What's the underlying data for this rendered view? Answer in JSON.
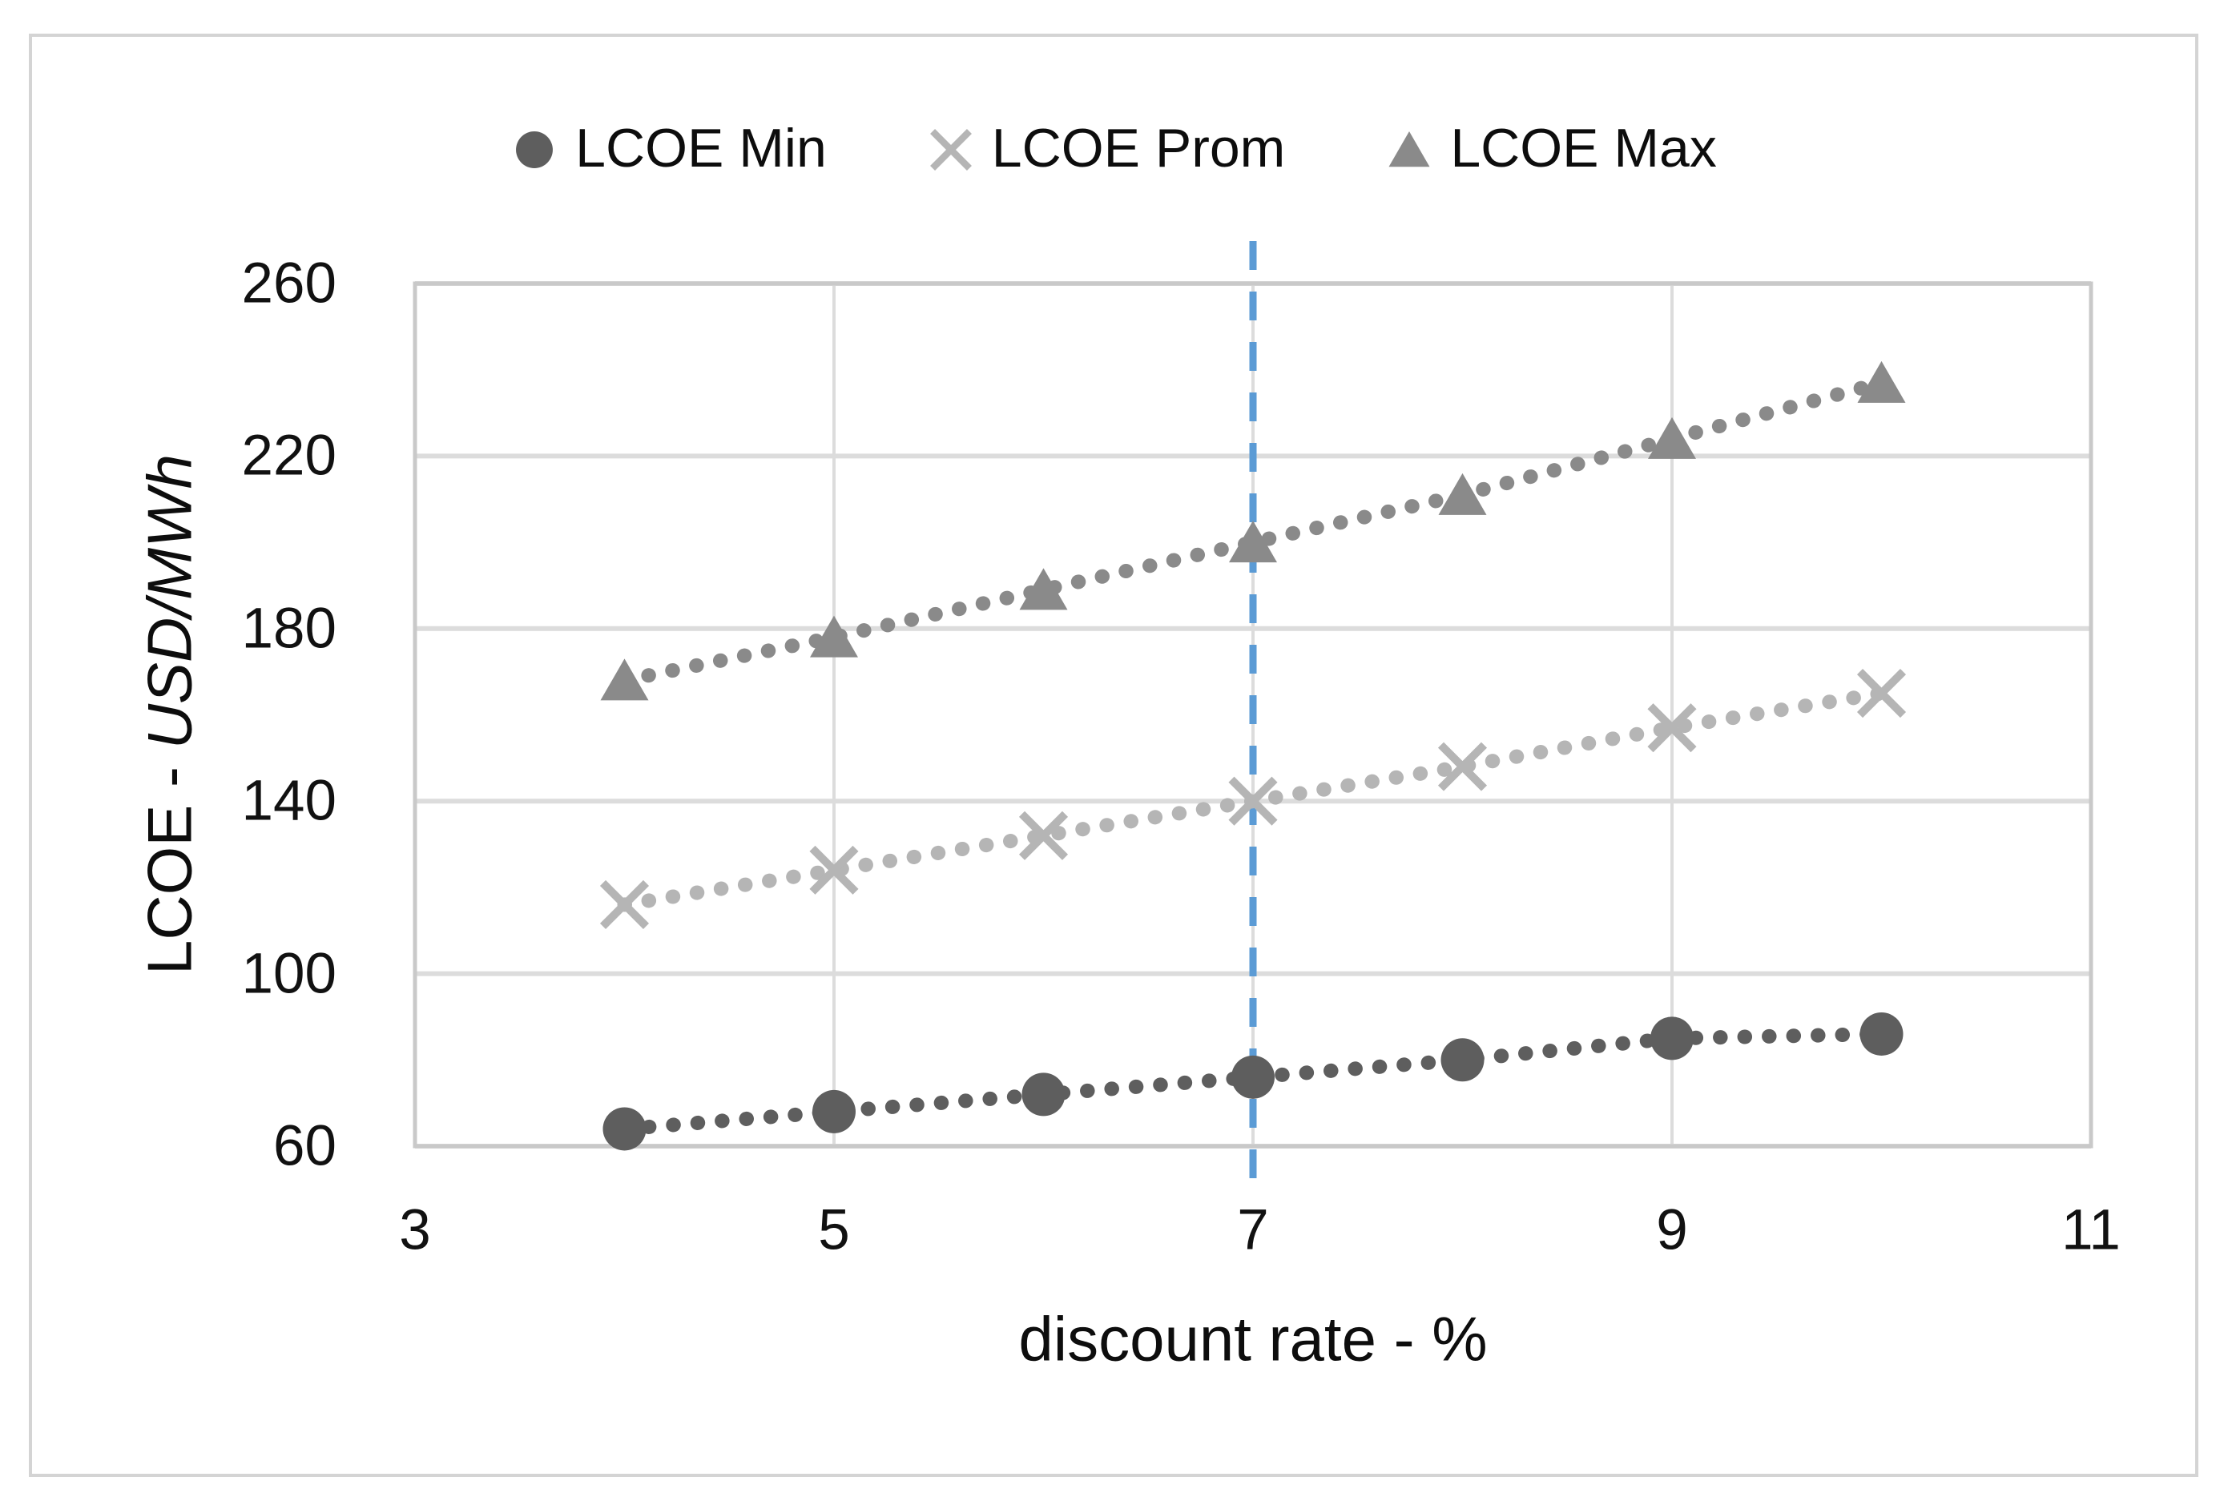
{
  "chart_data": {
    "type": "scatter",
    "x": [
      4,
      5,
      6,
      7,
      8,
      9,
      10
    ],
    "series": [
      {
        "name": "LCOE Min",
        "marker": "circle",
        "color": "#5e5e5e",
        "values": [
          64,
          68,
          72,
          76,
          80,
          85,
          86
        ]
      },
      {
        "name": "LCOE Prom",
        "marker": "x",
        "color": "#b5b5b5",
        "values": [
          116,
          124,
          132,
          140,
          148,
          157,
          165
        ]
      },
      {
        "name": "LCOE Max",
        "marker": "triangle",
        "color": "#8a8a8a",
        "values": [
          168,
          178,
          189,
          200,
          211,
          224,
          237
        ]
      }
    ],
    "xlabel": "discount rate - %",
    "ylabel_prefix": "LCOE - ",
    "ylabel_unit": "USD/MWh",
    "xlim": [
      3,
      11
    ],
    "ylim": [
      60,
      260
    ],
    "xticks": [
      3,
      5,
      7,
      9,
      11
    ],
    "yticks": [
      60,
      100,
      140,
      180,
      220,
      260
    ],
    "x_gridlines": [
      5,
      7,
      9
    ],
    "grid": true,
    "line_style": "dotted",
    "legend_position": "top",
    "reference_line": {
      "x": 7,
      "style": "dashed",
      "color": "#5b9bd5"
    },
    "colors": {
      "grid": "#dcdcdc",
      "plot_border": "#c9c9c9",
      "figure_border": "#d4d4d4"
    }
  }
}
